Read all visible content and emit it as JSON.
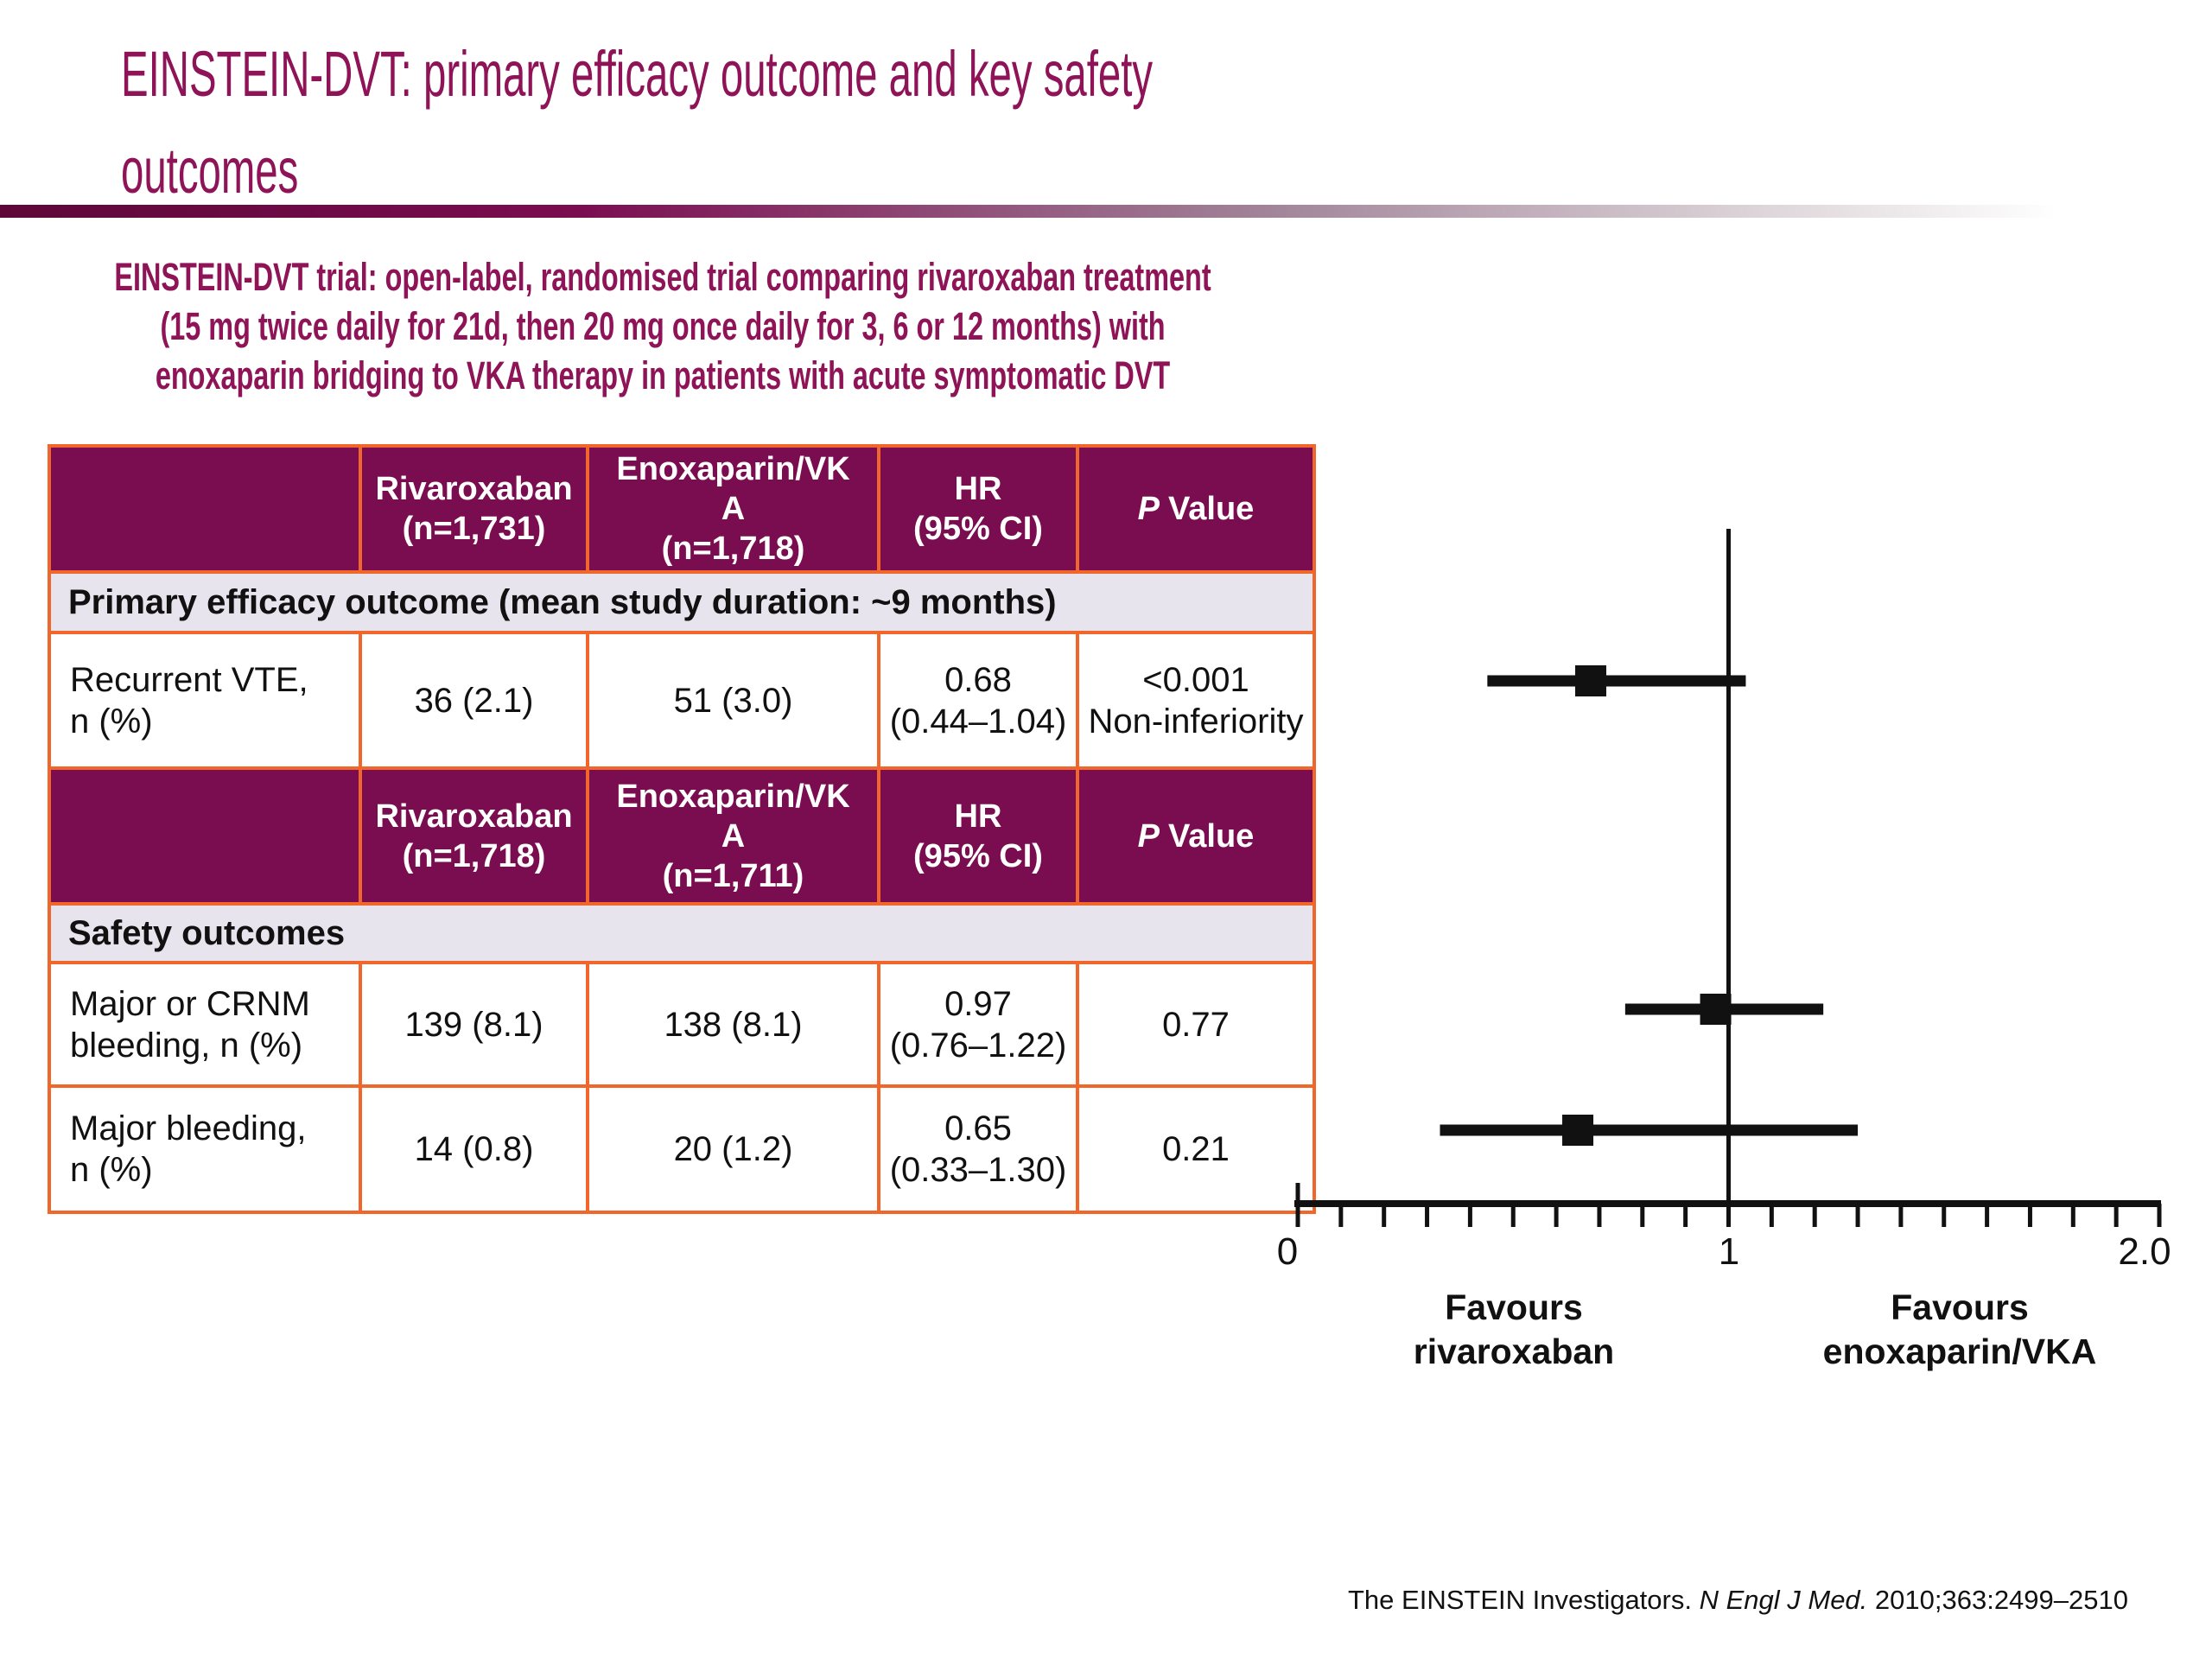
{
  "slide": {
    "title": "EINSTEIN-DVT: primary efficacy outcome and key safety\noutcomes",
    "subtitle": "EINSTEIN-DVT trial: open-label, randomised trial comparing rivaroxaban treatment\n(15 mg twice daily for 21d, then 20 mg once daily for 3, 6 or 12 months) with\nenoxaparin bridging to VKA therapy in patients with acute symptomatic DVT",
    "footer": {
      "pre": "The EINSTEIN Investigators. ",
      "journal": "N Engl J Med.",
      "post": " 2010;363:2499–2510"
    }
  },
  "colors": {
    "maroon": "#7A0C50",
    "magenta": "#8E1357",
    "orange": "#F1662B",
    "band": "#E7E4ED",
    "ink": "#111111"
  },
  "table": {
    "headers": [
      {
        "blank": "",
        "col2": "Rivaroxaban\n(n=1,731)",
        "col3": "Enoxaparin/VK\nA\n(n=1,718)",
        "hr": "HR\n(95% CI)",
        "p_label": "P",
        "p_word": "Value"
      },
      {
        "blank": "",
        "col2": "Rivaroxaban\n(n=1,718)",
        "col3": "Enoxaparin/VK\nA\n(n=1,711)",
        "hr": "HR\n(95% CI)",
        "p_label": "P",
        "p_word": "Value"
      }
    ],
    "sections": [
      "Primary efficacy outcome (mean study duration: ~9 months)",
      "Safety outcomes"
    ],
    "rows": [
      {
        "label": "Recurrent VTE,\nn (%)",
        "riva": "36 (2.1)",
        "enox": "51 (3.0)",
        "hr": "0.68\n(0.44–1.04)",
        "p": "<0.001\nNon-inferiority"
      },
      {
        "label": "Major or CRNM\nbleeding, n (%)",
        "riva": "139 (8.1)",
        "enox": "138 (8.1)",
        "hr": "0.97\n(0.76–1.22)",
        "p": "0.77"
      },
      {
        "label": "Major bleeding,\nn (%)",
        "riva": "14 (0.8)",
        "enox": "20 (1.2)",
        "hr": "0.65\n(0.33–1.30)",
        "p": "0.21"
      }
    ]
  },
  "chart_data": {
    "type": "forest",
    "x_axis": {
      "min": 0,
      "max": 2,
      "tick_step": 0.1,
      "reference_line": 1,
      "labels": [
        {
          "value": 0,
          "text": "0"
        },
        {
          "value": 1,
          "text": "1"
        },
        {
          "value": 2,
          "text": "2.0"
        }
      ]
    },
    "points": [
      {
        "label": "Recurrent VTE",
        "hr": 0.68,
        "ci_low": 0.44,
        "ci_high": 1.04
      },
      {
        "label": "Major or CRNM bleeding",
        "hr": 0.97,
        "ci_low": 0.76,
        "ci_high": 1.22
      },
      {
        "label": "Major bleeding",
        "hr": 0.65,
        "ci_low": 0.33,
        "ci_high": 1.3
      }
    ],
    "annotations": {
      "left": "Favours\nrivaroxaban",
      "right": "Favours\nenoxaparin/VKA"
    }
  }
}
